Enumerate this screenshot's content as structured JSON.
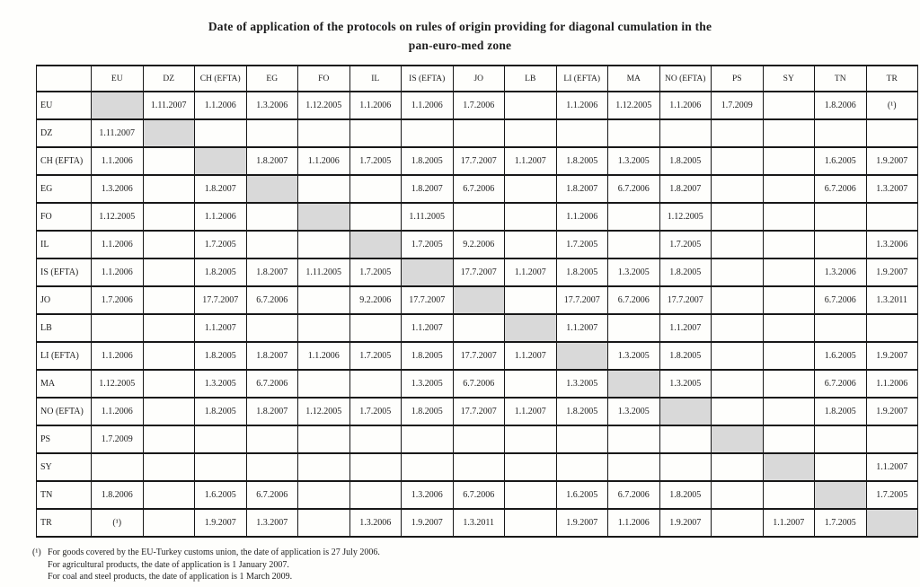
{
  "title": {
    "line1": "Date of application of the protocols on rules of origin providing for diagonal cumulation in the",
    "line2": "pan-euro-med zone"
  },
  "table": {
    "columns": [
      "EU",
      "DZ",
      "CH (EFTA)",
      "EG",
      "FO",
      "IL",
      "IS (EFTA)",
      "JO",
      "LB",
      "LI (EFTA)",
      "MA",
      "NO (EFTA)",
      "PS",
      "SY",
      "TN",
      "TR"
    ],
    "rows": [
      {
        "label": "EU",
        "cells": [
          "",
          "1.11.2007",
          "1.1.2006",
          "1.3.2006",
          "1.12.2005",
          "1.1.2006",
          "1.1.2006",
          "1.7.2006",
          "",
          "1.1.2006",
          "1.12.2005",
          "1.1.2006",
          "1.7.2009",
          "",
          "1.8.2006",
          "(¹)"
        ]
      },
      {
        "label": "DZ",
        "cells": [
          "1.11.2007",
          "",
          "",
          "",
          "",
          "",
          "",
          "",
          "",
          "",
          "",
          "",
          "",
          "",
          "",
          ""
        ]
      },
      {
        "label": "CH (EFTA)",
        "cells": [
          "1.1.2006",
          "",
          "",
          "1.8.2007",
          "1.1.2006",
          "1.7.2005",
          "1.8.2005",
          "17.7.2007",
          "1.1.2007",
          "1.8.2005",
          "1.3.2005",
          "1.8.2005",
          "",
          "",
          "1.6.2005",
          "1.9.2007"
        ]
      },
      {
        "label": "EG",
        "cells": [
          "1.3.2006",
          "",
          "1.8.2007",
          "",
          "",
          "",
          "1.8.2007",
          "6.7.2006",
          "",
          "1.8.2007",
          "6.7.2006",
          "1.8.2007",
          "",
          "",
          "6.7.2006",
          "1.3.2007"
        ]
      },
      {
        "label": "FO",
        "cells": [
          "1.12.2005",
          "",
          "1.1.2006",
          "",
          "",
          "",
          "1.11.2005",
          "",
          "",
          "1.1.2006",
          "",
          "1.12.2005",
          "",
          "",
          "",
          ""
        ]
      },
      {
        "label": "IL",
        "cells": [
          "1.1.2006",
          "",
          "1.7.2005",
          "",
          "",
          "",
          "1.7.2005",
          "9.2.2006",
          "",
          "1.7.2005",
          "",
          "1.7.2005",
          "",
          "",
          "",
          "1.3.2006"
        ]
      },
      {
        "label": "IS (EFTA)",
        "cells": [
          "1.1.2006",
          "",
          "1.8.2005",
          "1.8.2007",
          "1.11.2005",
          "1.7.2005",
          "",
          "17.7.2007",
          "1.1.2007",
          "1.8.2005",
          "1.3.2005",
          "1.8.2005",
          "",
          "",
          "1.3.2006",
          "1.9.2007"
        ]
      },
      {
        "label": "JO",
        "cells": [
          "1.7.2006",
          "",
          "17.7.2007",
          "6.7.2006",
          "",
          "9.2.2006",
          "17.7.2007",
          "",
          "",
          "17.7.2007",
          "6.7.2006",
          "17.7.2007",
          "",
          "",
          "6.7.2006",
          "1.3.2011"
        ]
      },
      {
        "label": "LB",
        "cells": [
          "",
          "",
          "1.1.2007",
          "",
          "",
          "",
          "1.1.2007",
          "",
          "",
          "1.1.2007",
          "",
          "1.1.2007",
          "",
          "",
          "",
          ""
        ]
      },
      {
        "label": "LI (EFTA)",
        "cells": [
          "1.1.2006",
          "",
          "1.8.2005",
          "1.8.2007",
          "1.1.2006",
          "1.7.2005",
          "1.8.2005",
          "17.7.2007",
          "1.1.2007",
          "",
          "1.3.2005",
          "1.8.2005",
          "",
          "",
          "1.6.2005",
          "1.9.2007"
        ]
      },
      {
        "label": "MA",
        "cells": [
          "1.12.2005",
          "",
          "1.3.2005",
          "6.7.2006",
          "",
          "",
          "1.3.2005",
          "6.7.2006",
          "",
          "1.3.2005",
          "",
          "1.3.2005",
          "",
          "",
          "6.7.2006",
          "1.1.2006"
        ]
      },
      {
        "label": "NO (EFTA)",
        "cells": [
          "1.1.2006",
          "",
          "1.8.2005",
          "1.8.2007",
          "1.12.2005",
          "1.7.2005",
          "1.8.2005",
          "17.7.2007",
          "1.1.2007",
          "1.8.2005",
          "1.3.2005",
          "",
          "",
          "",
          "1.8.2005",
          "1.9.2007"
        ]
      },
      {
        "label": "PS",
        "cells": [
          "1.7.2009",
          "",
          "",
          "",
          "",
          "",
          "",
          "",
          "",
          "",
          "",
          "",
          "",
          "",
          "",
          ""
        ]
      },
      {
        "label": "SY",
        "cells": [
          "",
          "",
          "",
          "",
          "",
          "",
          "",
          "",
          "",
          "",
          "",
          "",
          "",
          "",
          "",
          "1.1.2007"
        ]
      },
      {
        "label": "TN",
        "cells": [
          "1.8.2006",
          "",
          "1.6.2005",
          "6.7.2006",
          "",
          "",
          "1.3.2006",
          "6.7.2006",
          "",
          "1.6.2005",
          "6.7.2006",
          "1.8.2005",
          "",
          "",
          "",
          "1.7.2005"
        ]
      },
      {
        "label": "TR",
        "cells": [
          "(¹)",
          "",
          "1.9.2007",
          "1.3.2007",
          "",
          "1.3.2006",
          "1.9.2007",
          "1.3.2011",
          "",
          "1.9.2007",
          "1.1.2006",
          "1.9.2007",
          "",
          "1.1.2007",
          "1.7.2005",
          ""
        ]
      }
    ]
  },
  "footnotes": [
    {
      "marker": "(¹)",
      "text": "For goods covered by the EU-Turkey customs union, the date of application is 27 July 2006."
    },
    {
      "marker": "",
      "text": "For agricultural products, the date of application is 1 January 2007."
    },
    {
      "marker": "",
      "text": "For coal and steel products, the date of application is 1 March 2009."
    }
  ],
  "colors": {
    "diagonal_cell": "#d9d9d9",
    "grid_line": "#181818",
    "page_background": "#fefefc"
  }
}
